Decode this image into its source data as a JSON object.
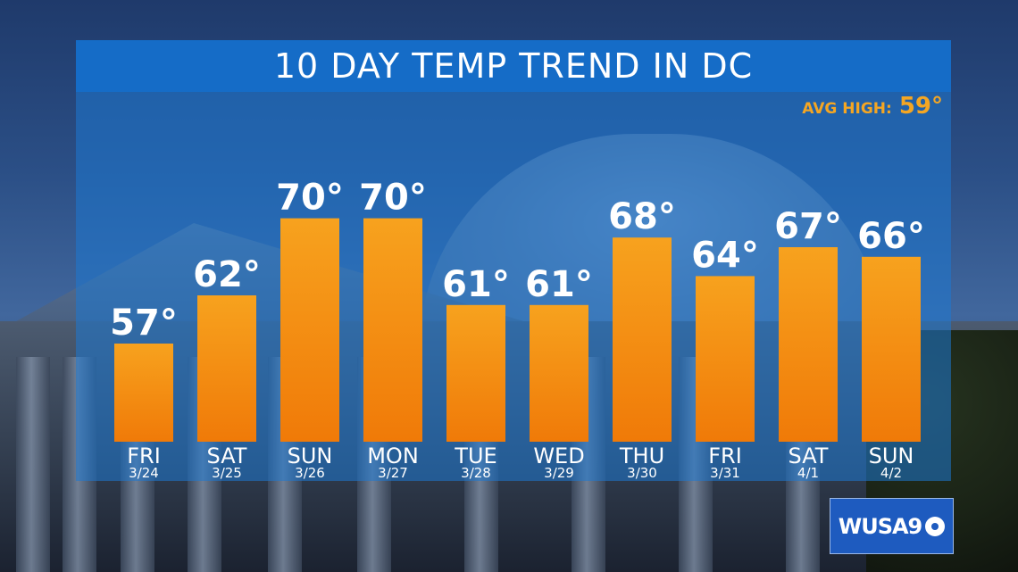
{
  "header": {
    "title": "10 DAY TEMP TREND IN DC",
    "avg_label": "AVG HIGH:",
    "avg_value": "59°"
  },
  "logo": {
    "text": "WUSA9"
  },
  "colors": {
    "bar_top": "#f7a21e",
    "bar_bottom": "#f07a08",
    "accent": "#f4a623",
    "panel": "#1e78d2"
  },
  "chart_data": {
    "type": "bar",
    "title": "10 DAY TEMP TREND IN DC",
    "unit": "°",
    "days": [
      "FRI",
      "SAT",
      "SUN",
      "MON",
      "TUE",
      "WED",
      "THU",
      "FRI",
      "SAT",
      "SUN"
    ],
    "dates": [
      "3/24",
      "3/25",
      "3/26",
      "3/27",
      "3/28",
      "3/29",
      "3/30",
      "3/31",
      "4/1",
      "4/2"
    ],
    "values": [
      57,
      62,
      70,
      70,
      61,
      61,
      68,
      64,
      67,
      66
    ],
    "value_labels": [
      "57°",
      "62°",
      "70°",
      "70°",
      "61°",
      "61°",
      "68°",
      "64°",
      "67°",
      "66°"
    ],
    "reference": {
      "label": "AVG HIGH:",
      "value": 59
    }
  }
}
